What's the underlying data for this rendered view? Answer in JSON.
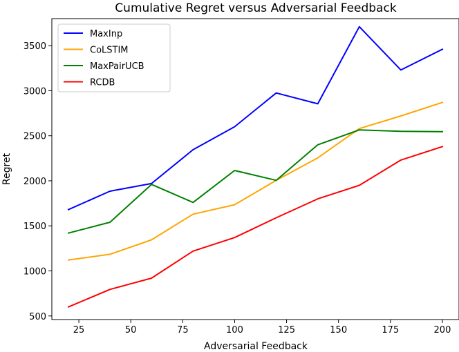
{
  "chart_data": {
    "type": "line",
    "title": "Cumulative Regret versus Adversarial Feedback",
    "xlabel": "Adversarial Feedback",
    "ylabel": "Regret",
    "xlim": [
      12,
      208
    ],
    "ylim": [
      460,
      3800
    ],
    "x": [
      20,
      40,
      60,
      80,
      100,
      120,
      140,
      160,
      180,
      200
    ],
    "xticks": [
      25,
      50,
      75,
      100,
      125,
      150,
      175,
      200
    ],
    "xtick_labels": [
      "25",
      "50",
      "75",
      "100",
      "125",
      "150",
      "175",
      "200"
    ],
    "yticks": [
      500,
      1000,
      1500,
      2000,
      2500,
      3000,
      3500
    ],
    "ytick_labels": [
      "500",
      "1000",
      "1500",
      "2000",
      "2500",
      "3000",
      "3500"
    ],
    "grid": false,
    "legend_position": "upper-left",
    "series": [
      {
        "name": "MaxInp",
        "color": "#0000ff",
        "values": [
          1680,
          1885,
          1970,
          2345,
          2600,
          2975,
          2855,
          3710,
          3230,
          3460
        ]
      },
      {
        "name": "CoLSTIM",
        "color": "#ffa500",
        "values": [
          1120,
          1185,
          1345,
          1630,
          1735,
          2005,
          2255,
          2580,
          2720,
          2870
        ]
      },
      {
        "name": "MaxPairUCB",
        "color": "#008000",
        "values": [
          1420,
          1540,
          1960,
          1760,
          2115,
          2005,
          2400,
          2565,
          2550,
          2545
        ]
      },
      {
        "name": "RCDB",
        "color": "#ff0000",
        "values": [
          600,
          795,
          920,
          1220,
          1370,
          1590,
          1800,
          1950,
          2230,
          2380
        ]
      }
    ]
  }
}
